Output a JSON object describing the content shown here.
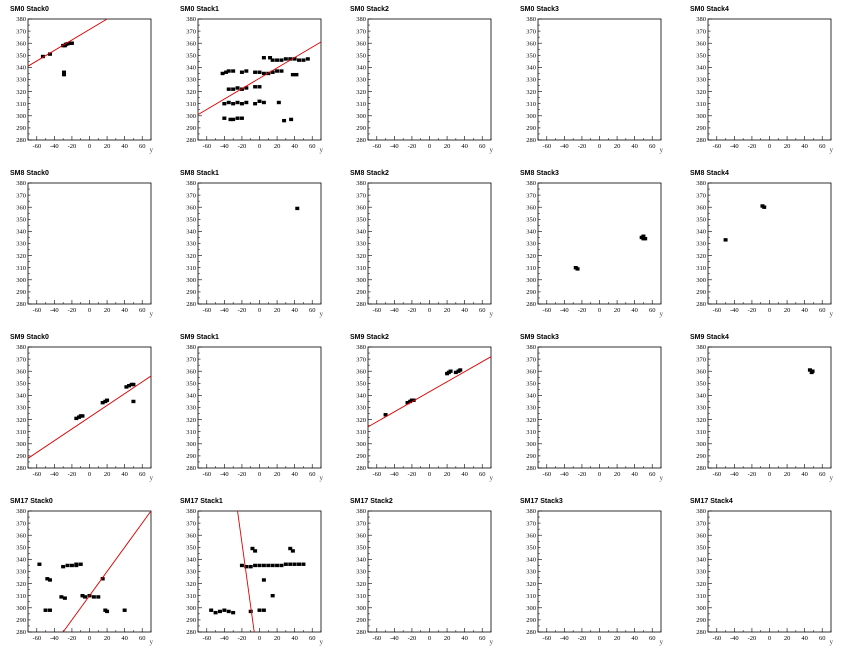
{
  "chart_data": {
    "type": "scatter",
    "layout": {
      "rows": 4,
      "cols": 5
    },
    "xlabel": "y",
    "xlim": [
      -70,
      70
    ],
    "ylim": [
      280,
      380
    ],
    "xticks": [
      -60,
      -40,
      -20,
      0,
      20,
      40,
      60
    ],
    "yticks": [
      280,
      290,
      300,
      310,
      320,
      330,
      340,
      350,
      360,
      370,
      380
    ],
    "mark_color": "#000000",
    "fit_color": "#dd0000",
    "panels": [
      {
        "title": "SM0 Stack0",
        "points": [
          [
            -53,
            349
          ],
          [
            -45,
            351
          ],
          [
            -30,
            358
          ],
          [
            -27,
            359
          ],
          [
            -25,
            359.5
          ],
          [
            -22,
            360
          ],
          [
            -20,
            360
          ],
          [
            -28,
            358
          ],
          [
            -29,
            336
          ],
          [
            -29,
            334
          ]
        ],
        "fit": [
          [
            -70,
            341
          ],
          [
            20,
            380
          ]
        ]
      },
      {
        "title": "SM0 Stack1",
        "points": [
          [
            -42,
            335
          ],
          [
            -38,
            336
          ],
          [
            -35,
            337
          ],
          [
            -30,
            337
          ],
          [
            -20,
            336
          ],
          [
            -15,
            337
          ],
          [
            -5,
            336
          ],
          [
            0,
            336
          ],
          [
            5,
            335
          ],
          [
            10,
            335
          ],
          [
            15,
            336
          ],
          [
            20,
            337
          ],
          [
            25,
            337
          ],
          [
            38,
            334
          ],
          [
            42,
            334
          ],
          [
            -40,
            310
          ],
          [
            -35,
            311
          ],
          [
            -30,
            310
          ],
          [
            -25,
            311
          ],
          [
            -20,
            310
          ],
          [
            -15,
            311
          ],
          [
            -5,
            310
          ],
          [
            0,
            312
          ],
          [
            5,
            311
          ],
          [
            22,
            311
          ],
          [
            -35,
            322
          ],
          [
            -30,
            322
          ],
          [
            -25,
            323
          ],
          [
            -20,
            322
          ],
          [
            -15,
            323
          ],
          [
            -5,
            324
          ],
          [
            0,
            324
          ],
          [
            -40,
            298
          ],
          [
            -33,
            297
          ],
          [
            -30,
            297
          ],
          [
            -25,
            298
          ],
          [
            -20,
            298
          ],
          [
            28,
            296
          ],
          [
            36,
            297
          ],
          [
            5,
            348
          ],
          [
            15,
            346
          ],
          [
            20,
            346
          ],
          [
            25,
            346
          ],
          [
            30,
            347
          ],
          [
            35,
            347
          ],
          [
            40,
            347
          ],
          [
            45,
            346
          ],
          [
            50,
            346
          ],
          [
            55,
            347
          ],
          [
            12,
            348
          ]
        ],
        "fit": [
          [
            -70,
            301
          ],
          [
            70,
            361
          ]
        ]
      },
      {
        "title": "SM0 Stack2",
        "points": [],
        "fit": null
      },
      {
        "title": "SM0 Stack3",
        "points": [],
        "fit": null
      },
      {
        "title": "SM0 Stack4",
        "points": [],
        "fit": null
      },
      {
        "title": "SM8 Stack0",
        "points": [],
        "fit": null
      },
      {
        "title": "SM8 Stack1",
        "points": [
          [
            43,
            359
          ]
        ],
        "fit": null
      },
      {
        "title": "SM8 Stack2",
        "points": [],
        "fit": null
      },
      {
        "title": "SM8 Stack3",
        "points": [
          [
            -27,
            310
          ],
          [
            -25,
            309
          ],
          [
            48,
            335
          ],
          [
            50,
            336
          ],
          [
            52,
            334
          ],
          [
            50,
            334
          ]
        ],
        "fit": null
      },
      {
        "title": "SM8 Stack4",
        "points": [
          [
            -8,
            361
          ],
          [
            -6,
            360
          ],
          [
            -50,
            333
          ]
        ],
        "fit": null
      },
      {
        "title": "SM9 Stack0",
        "points": [
          [
            -15,
            321
          ],
          [
            -12,
            322
          ],
          [
            -10,
            323
          ],
          [
            -8,
            323
          ],
          [
            15,
            334
          ],
          [
            18,
            335
          ],
          [
            20,
            336
          ],
          [
            42,
            347
          ],
          [
            45,
            348
          ],
          [
            48,
            349
          ],
          [
            50,
            349
          ],
          [
            50,
            335
          ]
        ],
        "fit": [
          [
            -70,
            288
          ],
          [
            70,
            356
          ]
        ]
      },
      {
        "title": "SM9 Stack1",
        "points": [],
        "fit": null
      },
      {
        "title": "SM9 Stack2",
        "points": [
          [
            -50,
            324
          ],
          [
            -25,
            334
          ],
          [
            -22,
            335
          ],
          [
            -20,
            336
          ],
          [
            -18,
            336
          ],
          [
            20,
            358
          ],
          [
            22,
            359
          ],
          [
            24,
            360
          ],
          [
            30,
            359
          ],
          [
            33,
            360
          ],
          [
            35,
            361
          ]
        ],
        "fit": [
          [
            -70,
            314
          ],
          [
            70,
            372
          ]
        ]
      },
      {
        "title": "SM9 Stack3",
        "points": [],
        "fit": null
      },
      {
        "title": "SM9 Stack4",
        "points": [
          [
            46,
            361
          ],
          [
            48,
            359
          ],
          [
            49,
            360
          ]
        ],
        "fit": null
      },
      {
        "title": "SM17 Stack0",
        "points": [
          [
            -57,
            336
          ],
          [
            -50,
            298
          ],
          [
            -45,
            298
          ],
          [
            -48,
            324
          ],
          [
            -45,
            323
          ],
          [
            -32,
            309
          ],
          [
            -28,
            308
          ],
          [
            -30,
            334
          ],
          [
            -25,
            335
          ],
          [
            -20,
            335
          ],
          [
            -15,
            335
          ],
          [
            -10,
            336
          ],
          [
            -8,
            310
          ],
          [
            -5,
            309
          ],
          [
            0,
            310
          ],
          [
            5,
            309
          ],
          [
            10,
            309
          ],
          [
            15,
            324
          ],
          [
            18,
            298
          ],
          [
            20,
            297
          ],
          [
            40,
            298
          ],
          [
            -15,
            336
          ]
        ],
        "fit": [
          [
            -30,
            280
          ],
          [
            70,
            380
          ]
        ]
      },
      {
        "title": "SM17 Stack1",
        "points": [
          [
            -55,
            298
          ],
          [
            -50,
            296
          ],
          [
            -45,
            297
          ],
          [
            -40,
            298
          ],
          [
            -35,
            297
          ],
          [
            -30,
            296
          ],
          [
            -20,
            335
          ],
          [
            -15,
            334
          ],
          [
            -10,
            334
          ],
          [
            -5,
            335
          ],
          [
            0,
            335
          ],
          [
            5,
            335
          ],
          [
            10,
            335
          ],
          [
            15,
            335
          ],
          [
            20,
            335
          ],
          [
            25,
            335
          ],
          [
            30,
            336
          ],
          [
            35,
            336
          ],
          [
            40,
            336
          ],
          [
            45,
            336
          ],
          [
            50,
            336
          ],
          [
            -8,
            349
          ],
          [
            -5,
            347
          ],
          [
            35,
            349
          ],
          [
            38,
            347
          ],
          [
            5,
            323
          ],
          [
            0,
            298
          ],
          [
            5,
            298
          ],
          [
            15,
            310
          ],
          [
            -10,
            297
          ]
        ],
        "fit": [
          [
            -25,
            380
          ],
          [
            -6,
            280
          ]
        ]
      },
      {
        "title": "SM17 Stack2",
        "points": [],
        "fit": null
      },
      {
        "title": "SM17 Stack3",
        "points": [],
        "fit": null
      },
      {
        "title": "SM17 Stack4",
        "points": [],
        "fit": null
      }
    ]
  }
}
